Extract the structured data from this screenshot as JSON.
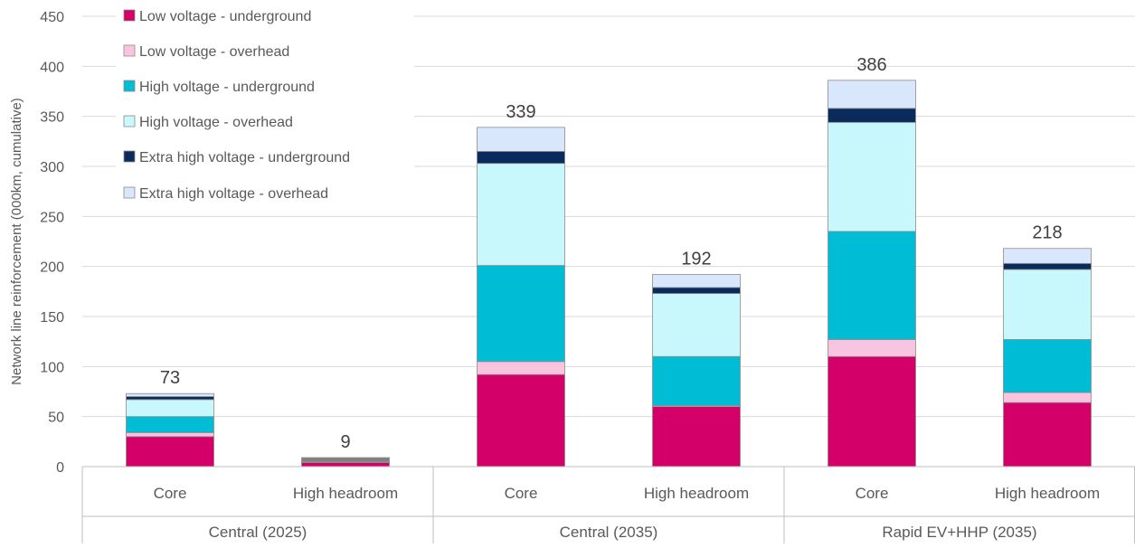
{
  "chart_data": {
    "type": "bar",
    "stacked": true,
    "ylabel": "Network line reinforcement (000km, cumulative)",
    "ylim": [
      0,
      450
    ],
    "yticks": [
      0,
      50,
      100,
      150,
      200,
      250,
      300,
      350,
      400,
      450
    ],
    "grid": true,
    "legend_position": "top-left",
    "groups": [
      {
        "label": "Central (2025)",
        "categories": [
          "Core",
          "High headroom"
        ]
      },
      {
        "label": "Central (2035)",
        "categories": [
          "Core",
          "High headroom"
        ]
      },
      {
        "label": "Rapid EV+HHP (2035)",
        "categories": [
          "Core",
          "High headroom"
        ]
      }
    ],
    "categories": [
      "Core",
      "High headroom",
      "Core",
      "High headroom",
      "Core",
      "High headroom"
    ],
    "totals": [
      "73",
      "9",
      "339",
      "192",
      "386",
      "218"
    ],
    "series": [
      {
        "name": "Low voltage - underground",
        "color": "#d4006a",
        "values": [
          30,
          4,
          92,
          60,
          110,
          64
        ]
      },
      {
        "name": "Low voltage - overhead",
        "color": "#f9c4df",
        "values": [
          4,
          1,
          13,
          1,
          17,
          10
        ]
      },
      {
        "name": "High voltage - underground",
        "color": "#00bcd4",
        "values": [
          16,
          0,
          96,
          49,
          108,
          53
        ]
      },
      {
        "name": "High voltage - overhead",
        "color": "#c8f7fc",
        "values": [
          17,
          0,
          102,
          63,
          109,
          70
        ]
      },
      {
        "name": "Extra high voltage - underground",
        "color": "#0a2a5c",
        "values": [
          3,
          0,
          12,
          6,
          14,
          6
        ]
      },
      {
        "name": "Extra high voltage - overhead",
        "color": "#d8e7fb",
        "values": [
          3,
          4,
          24,
          13,
          28,
          15
        ]
      }
    ],
    "colors_note_gray": "#7f7f7f"
  }
}
